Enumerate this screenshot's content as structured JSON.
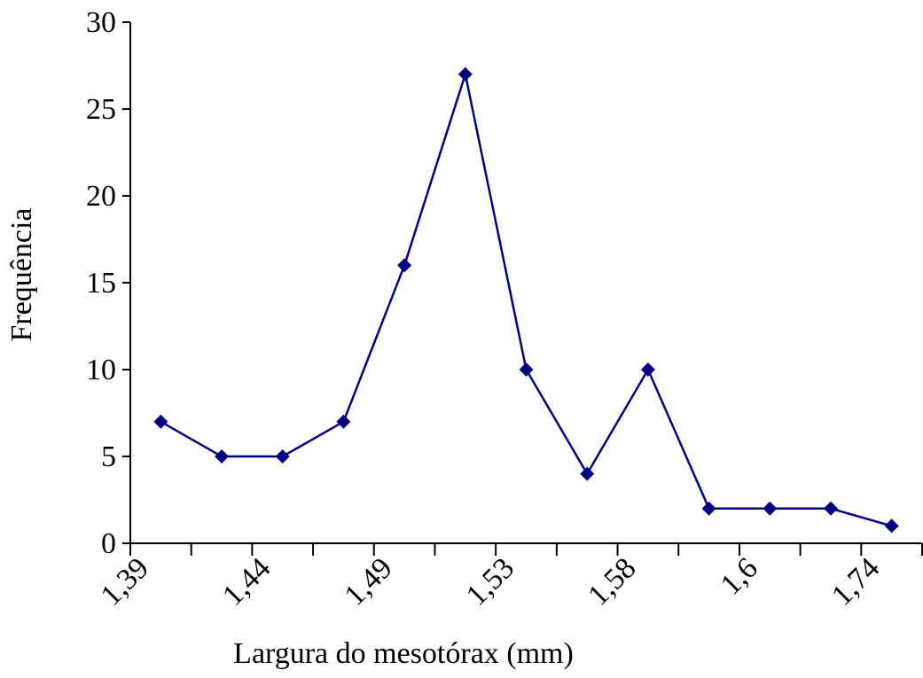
{
  "chart_data": {
    "type": "line",
    "x_label": "Largura do mesotórax (mm)",
    "y_label": "Frequência",
    "categories": [
      "1,39",
      null,
      "1,44",
      null,
      "1,49",
      null,
      "1,53",
      null,
      "1,58",
      null,
      "1,6",
      null,
      "1,74"
    ],
    "series": [
      {
        "name": "Frequência",
        "color": "#000080",
        "values": [
          7,
          5,
          5,
          7,
          16,
          27,
          10,
          4,
          10,
          2,
          2,
          2,
          1
        ]
      }
    ],
    "ylim": [
      0,
      30
    ],
    "yticks": [
      0,
      5,
      10,
      15,
      20,
      25,
      30
    ]
  }
}
